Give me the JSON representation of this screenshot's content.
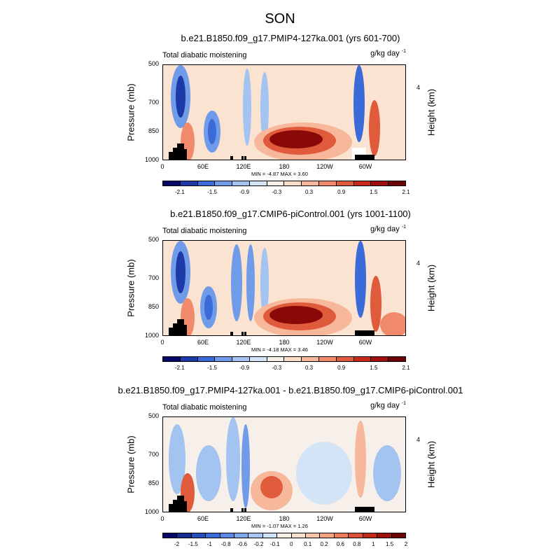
{
  "figure": {
    "title": "SON"
  },
  "chart_data": [
    {
      "type": "heatmap",
      "title": "b.e21.B1850.f09_g17.PMIP4-127ka.001 (yrs 601-700)",
      "variable_label": "Total diabatic moistening",
      "units": "g/kg day",
      "units_exponent": "-1",
      "ylabel": "Pressure (mb)",
      "ylabel_right": "Height (km)",
      "y_ticks": [
        "500",
        "700",
        "850",
        "1000"
      ],
      "y_right_ticks": [
        "4"
      ],
      "x_ticks": [
        "0",
        "60E",
        "120E",
        "180",
        "120W",
        "60W"
      ],
      "stats": "MIN = -4.87  MAX =  3.60",
      "colorbar_labels": [
        "-2.1",
        "-1.5",
        "-0.9",
        "-0.3",
        "0.3",
        "0.9",
        "1.5",
        "2.1"
      ],
      "colorbar_colors": [
        "#08086b",
        "#1c3ba8",
        "#3a6bd8",
        "#6f9be8",
        "#a3c3f0",
        "#d4e4f7",
        "#f6efe7",
        "#fbdcc7",
        "#f6b79a",
        "#f08a6a",
        "#e05a3c",
        "#c62a1a",
        "#a0100c",
        "#6d0304"
      ]
    },
    {
      "type": "heatmap",
      "title": "b.e21.B1850.f09_g17.CMIP6-piControl.001 (yrs 1001-1100)",
      "variable_label": "Total diabatic moistening",
      "units": "g/kg day",
      "units_exponent": "-1",
      "ylabel": "Pressure (mb)",
      "ylabel_right": "Height (km)",
      "y_ticks": [
        "500",
        "700",
        "850",
        "1000"
      ],
      "y_right_ticks": [
        "4"
      ],
      "x_ticks": [
        "0",
        "60E",
        "120E",
        "180",
        "120W",
        "60W"
      ],
      "stats": "MIN = -4.18  MAX =  3.46",
      "colorbar_labels": [
        "-2.1",
        "-1.5",
        "-0.9",
        "-0.3",
        "0.3",
        "0.9",
        "1.5",
        "2.1"
      ],
      "colorbar_colors": [
        "#08086b",
        "#1c3ba8",
        "#3a6bd8",
        "#6f9be8",
        "#a3c3f0",
        "#d4e4f7",
        "#f6efe7",
        "#fbdcc7",
        "#f6b79a",
        "#f08a6a",
        "#e05a3c",
        "#c62a1a",
        "#a0100c",
        "#6d0304"
      ]
    },
    {
      "type": "heatmap",
      "title": "b.e21.B1850.f09_g17.PMIP4-127ka.001 - b.e21.B1850.f09_g17.CMIP6-piControl.001",
      "variable_label": "Total diabatic moistening",
      "units": "g/kg day",
      "units_exponent": "-1",
      "ylabel": "Pressure (mb)",
      "ylabel_right": "Height (km)",
      "y_ticks": [
        "500",
        "700",
        "850",
        "1000"
      ],
      "y_right_ticks": [
        "4"
      ],
      "x_ticks": [
        "0",
        "60E",
        "120E",
        "180",
        "120W",
        "60W"
      ],
      "stats": "MIN = -1.07  MAX =  1.26",
      "colorbar_labels": [
        "-2",
        "-1.5",
        "-1",
        "-0.8",
        "-0.6",
        "-0.2",
        "-0.1",
        "0",
        "0.1",
        "0.2",
        "0.6",
        "0.8",
        "1",
        "1.5",
        "2"
      ],
      "colorbar_colors": [
        "#08086b",
        "#142c90",
        "#2450b8",
        "#3a6bd8",
        "#5a88e2",
        "#80a6ec",
        "#a8c4f2",
        "#d0e2f7",
        "#f6efe7",
        "#fbe0d0",
        "#f8c4aa",
        "#f4a282",
        "#ec7c5c",
        "#dc5238",
        "#c42a18",
        "#a0100c",
        "#6d0304"
      ]
    }
  ]
}
